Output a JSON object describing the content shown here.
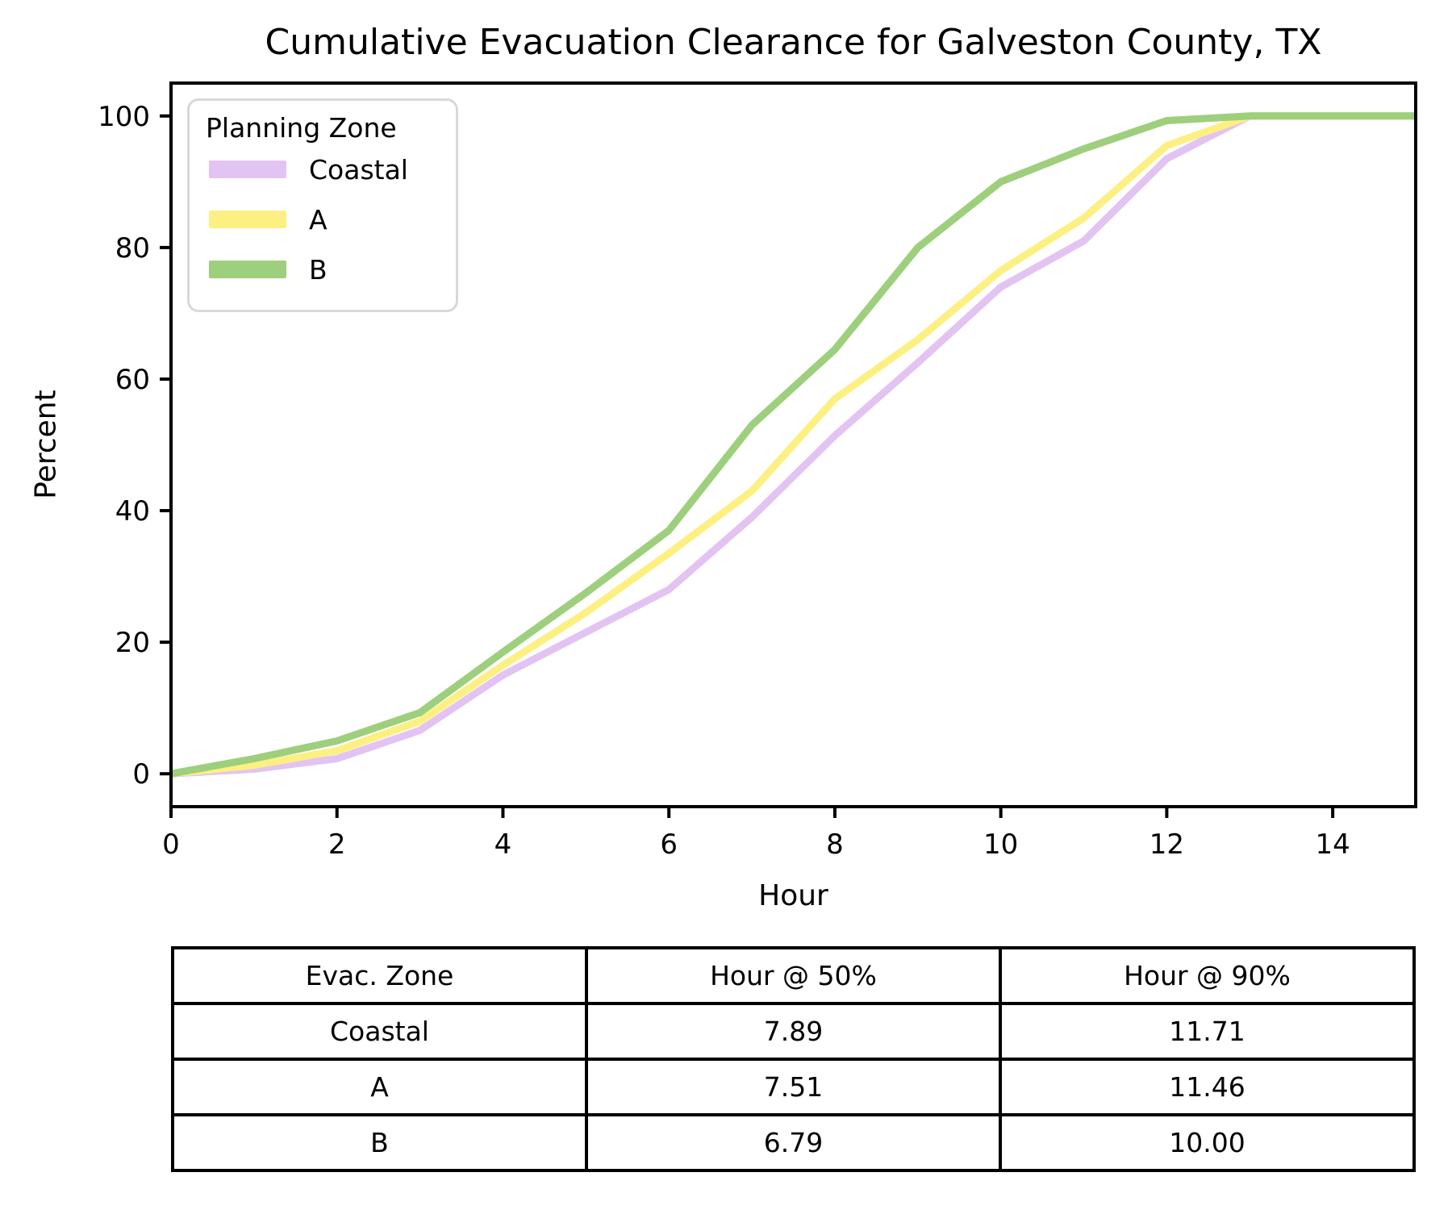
{
  "chart_data": {
    "type": "line",
    "title": "Cumulative Evacuation Clearance for Galveston County, TX",
    "xlabel": "Hour",
    "ylabel": "Percent",
    "xlim": [
      0,
      15
    ],
    "ylim": [
      -5,
      105
    ],
    "xticks": [
      0,
      2,
      4,
      6,
      8,
      10,
      12,
      14
    ],
    "yticks": [
      0,
      20,
      40,
      60,
      80,
      100
    ],
    "grid": false,
    "legend_title": "Planning Zone",
    "legend_position": "upper left",
    "x": [
      0,
      1,
      2,
      3,
      4,
      5,
      6,
      7,
      8,
      9,
      10,
      11,
      12,
      13,
      14,
      15
    ],
    "series": [
      {
        "name": "Coastal",
        "color": "#e3c3f2",
        "values": [
          0,
          0.7,
          2.3,
          6.6,
          15,
          21.5,
          28,
          39,
          51.4,
          62.5,
          74,
          81,
          93.5,
          100,
          100,
          100
        ]
      },
      {
        "name": "A",
        "color": "#fcf083",
        "values": [
          0,
          1.3,
          3.5,
          8,
          16.5,
          24.5,
          33.5,
          43,
          57,
          66,
          76.5,
          84.5,
          95.5,
          100,
          100,
          100
        ]
      },
      {
        "name": "B",
        "color": "#9ecf7d",
        "values": [
          0,
          2.3,
          5,
          9.3,
          18.5,
          27.5,
          37,
          53,
          64.5,
          80,
          90,
          95,
          99.3,
          100,
          100,
          100
        ]
      }
    ]
  },
  "table": {
    "headers": [
      "Evac. Zone",
      "Hour @ 50%",
      "Hour @ 90%"
    ],
    "rows": [
      [
        "Coastal",
        "7.89",
        "11.71"
      ],
      [
        "A",
        "7.51",
        "11.46"
      ],
      [
        "B",
        "6.79",
        "10.00"
      ]
    ]
  }
}
